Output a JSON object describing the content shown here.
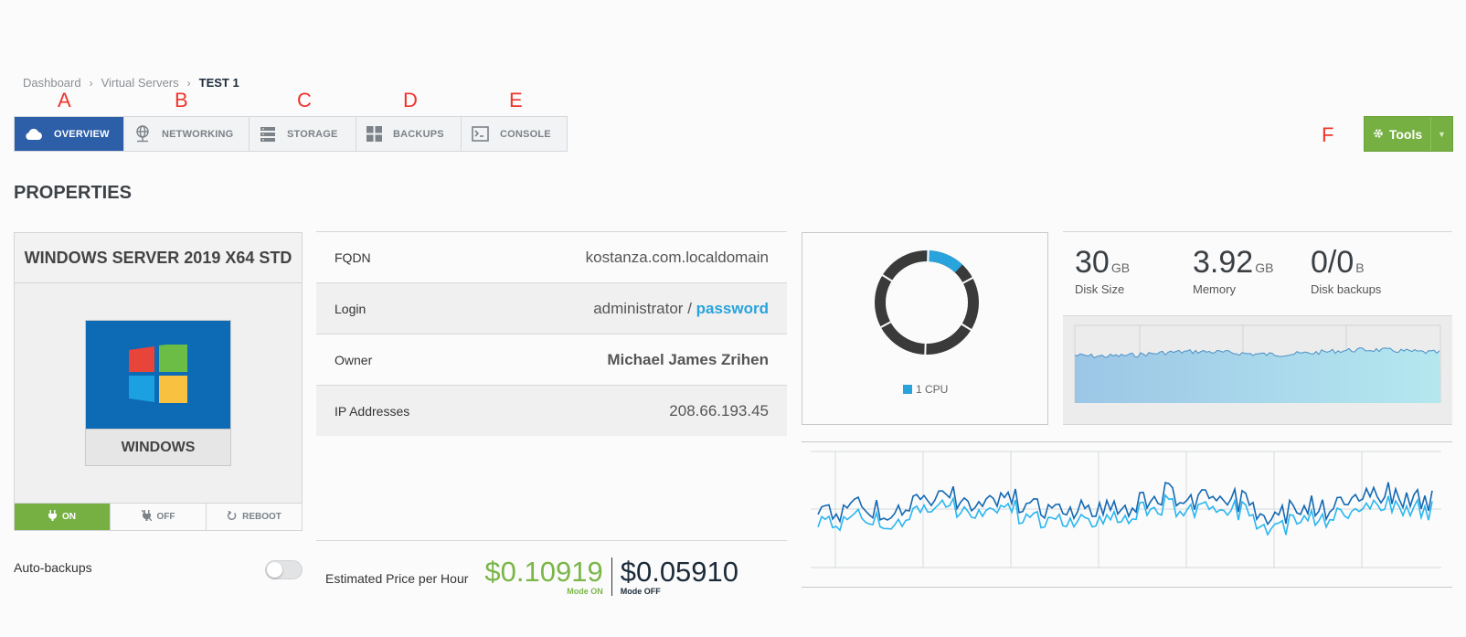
{
  "breadcrumb": {
    "items": [
      "Dashboard",
      "Virtual Servers"
    ],
    "current": "TEST 1"
  },
  "callouts": [
    "A",
    "B",
    "C",
    "D",
    "E",
    "F"
  ],
  "tabs": [
    {
      "label": "OVERVIEW",
      "icon": "cloud-icon",
      "active": true
    },
    {
      "label": "NETWORKING",
      "icon": "globe-network-icon",
      "active": false
    },
    {
      "label": "STORAGE",
      "icon": "server-storage-icon",
      "active": false
    },
    {
      "label": "BACKUPS",
      "icon": "grid-backups-icon",
      "active": false
    },
    {
      "label": "CONSOLE",
      "icon": "terminal-icon",
      "active": false
    }
  ],
  "tools": {
    "label": "Tools",
    "icon": "gear-icon",
    "color": "#76b043"
  },
  "heading": "PROPERTIES",
  "os": {
    "title": "WINDOWS SERVER 2019 X64 STD",
    "name": "WINDOWS",
    "power": {
      "on": "ON",
      "off": "OFF",
      "reboot": "REBOOT",
      "state": "on"
    }
  },
  "autobackups": {
    "label": "Auto-backups",
    "enabled": false
  },
  "properties": {
    "fqdn": {
      "label": "FQDN",
      "value": "kostanza.com.localdomain"
    },
    "login": {
      "label": "Login",
      "user": "administrator",
      "separator": " / ",
      "password_link": "password"
    },
    "owner": {
      "label": "Owner",
      "value": "Michael James Zrihen"
    },
    "ip": {
      "label": "IP Addresses",
      "value": "208.66.193.45"
    }
  },
  "price": {
    "label": "Estimated Price per Hour",
    "on_amount": "$0.10919",
    "on_caption": "Mode ON",
    "off_amount": "$0.05910",
    "off_caption": "Mode OFF"
  },
  "cpu": {
    "legend": "1 CPU",
    "usage_fraction": 0.12,
    "color": "#29a3dc"
  },
  "stats": {
    "disk": {
      "value": "30",
      "unit": "GB",
      "caption": "Disk Size"
    },
    "memory": {
      "value": "3.92",
      "unit": "GB",
      "caption": "Memory"
    },
    "backups": {
      "value": "0/0",
      "unit": "B",
      "caption": "Disk backups"
    }
  },
  "colors": {
    "accent": "#2c5fa8",
    "link": "#29a3dc",
    "green": "#76b043"
  }
}
